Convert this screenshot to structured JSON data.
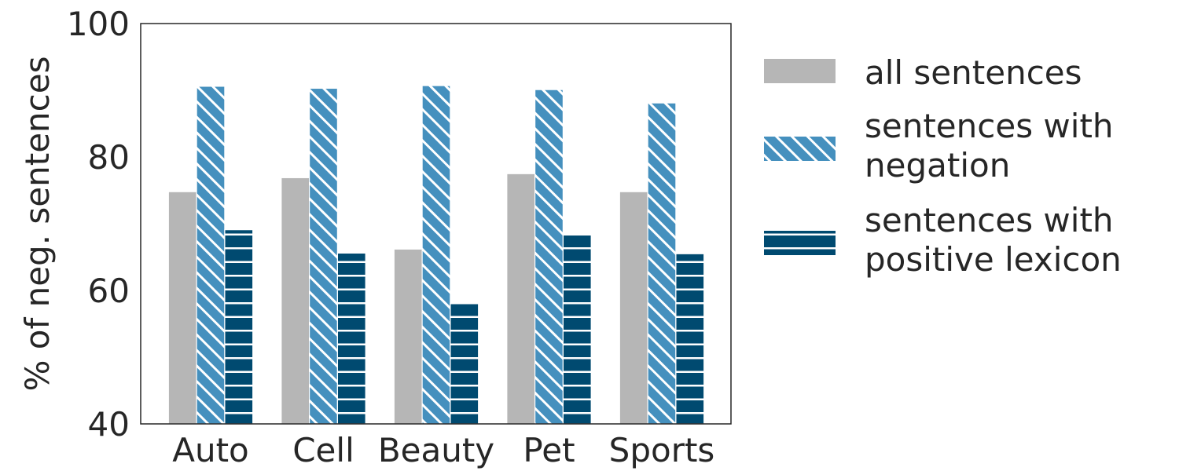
{
  "chart_data": {
    "type": "bar",
    "categories": [
      "Auto",
      "Cell",
      "Beauty",
      "Pet",
      "Sports"
    ],
    "series": [
      {
        "name": "all sentences",
        "values": [
          74.8,
          76.9,
          66.2,
          77.5,
          74.8
        ],
        "color": "#b6b6b6",
        "pattern": "solid"
      },
      {
        "name": "sentences with negation",
        "values": [
          90.6,
          90.3,
          90.7,
          90.1,
          88.1
        ],
        "color": "#4590be",
        "pattern": "diagonal-hatch"
      },
      {
        "name": "sentences with positive lexicon",
        "values": [
          69.1,
          65.6,
          58.1,
          68.5,
          65.5
        ],
        "color": "#004a70",
        "pattern": "horizontal-hatch"
      }
    ],
    "ylabel": "% of neg. sentences",
    "xlabel": "",
    "ylim": [
      40,
      100
    ],
    "yticks": [
      40,
      60,
      80,
      100
    ],
    "grid": false,
    "legend_position": "outside-right"
  }
}
